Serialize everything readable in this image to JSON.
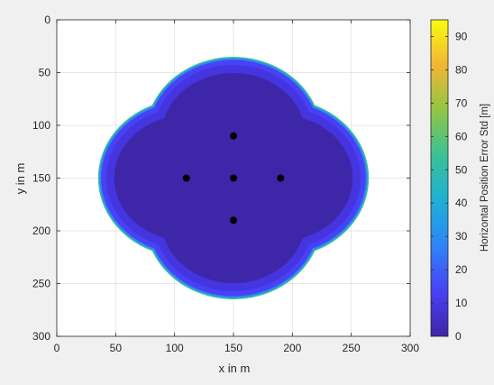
{
  "chart_data": {
    "type": "heatmap",
    "title": "",
    "xlabel": "x in m",
    "ylabel": "y in m",
    "xlim": [
      0,
      300
    ],
    "ylim": [
      0,
      300
    ],
    "y_axis_reversed": true,
    "grid": true,
    "x_ticks": [
      0,
      50,
      100,
      150,
      200,
      250,
      300
    ],
    "y_ticks": [
      0,
      50,
      100,
      150,
      200,
      250,
      300
    ],
    "colorbar": {
      "label": "Horizontal Position Error Std [m]",
      "range": [
        0,
        95
      ],
      "ticks": [
        0,
        10,
        20,
        30,
        40,
        50,
        60,
        70,
        80,
        90
      ],
      "colormap": "parula",
      "colors": [
        "#3e26a8",
        "#4841f6",
        "#2e84f8",
        "#1eb0d5",
        "#3ac197",
        "#90c644",
        "#f2b635",
        "#f9fb0f"
      ],
      "position": "right"
    },
    "coverage_region": {
      "description": "Four overlapping discs of radius 75 m centred 40 m offset from (150,150); the colored region is their union, outside is blank (white)",
      "circles": [
        {
          "x": 150,
          "y": 110,
          "r": 75
        },
        {
          "x": 150,
          "y": 190,
          "r": 75
        },
        {
          "x": 110,
          "y": 150,
          "r": 75
        },
        {
          "x": 190,
          "y": 150,
          "r": 75
        }
      ],
      "interior_value": 5,
      "edge_value_max": 60
    },
    "anchors": [
      {
        "x": 150,
        "y": 110
      },
      {
        "x": 110,
        "y": 150
      },
      {
        "x": 150,
        "y": 150
      },
      {
        "x": 190,
        "y": 150
      },
      {
        "x": 150,
        "y": 190
      }
    ]
  }
}
